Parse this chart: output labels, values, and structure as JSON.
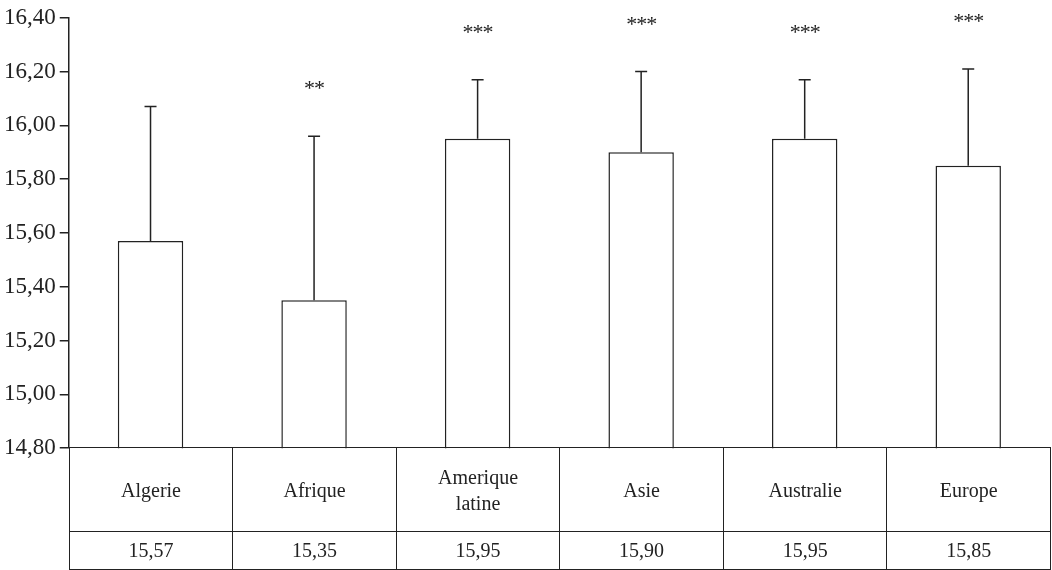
{
  "chart_data": {
    "type": "bar",
    "categories": [
      "Algerie",
      "Afrique",
      "Amerique latine",
      "Asie",
      "Australie",
      "Europe"
    ],
    "values": [
      15.57,
      15.35,
      15.95,
      15.9,
      15.95,
      15.85
    ],
    "value_labels": [
      "15,57",
      "15,35",
      "15,95",
      "15,90",
      "15,95",
      "15,85"
    ],
    "errors": [
      [
        15.57,
        16.07
      ],
      [
        15.35,
        15.96
      ],
      [
        15.95,
        16.17
      ],
      [
        15.9,
        16.2
      ],
      [
        15.95,
        16.17
      ],
      [
        15.85,
        16.21
      ]
    ],
    "color": "#ffffff",
    "ylim": [
      14.8,
      16.4
    ],
    "yticks": [
      {
        "value": 14.8,
        "label": "14,80"
      },
      {
        "value": 15.0,
        "label": "15,00"
      },
      {
        "value": 15.2,
        "label": "15,20"
      },
      {
        "value": 15.4,
        "label": "15,40"
      },
      {
        "value": 15.6,
        "label": "15,60"
      },
      {
        "value": 15.8,
        "label": "15,80"
      },
      {
        "value": 16.0,
        "label": "16,00"
      },
      {
        "value": 16.2,
        "label": "16,20"
      },
      {
        "value": 16.4,
        "label": "16,40"
      }
    ],
    "annotations": [
      {
        "text": "**",
        "x": "Afrique",
        "y": 15.96
      },
      {
        "text": "***",
        "x": "Amerique latine",
        "y": 16.17
      },
      {
        "text": "***",
        "x": "Asie",
        "y": 16.2
      },
      {
        "text": "***",
        "x": "Australie",
        "y": 16.17
      },
      {
        "text": "***",
        "x": "Europe",
        "y": 16.21
      }
    ]
  }
}
